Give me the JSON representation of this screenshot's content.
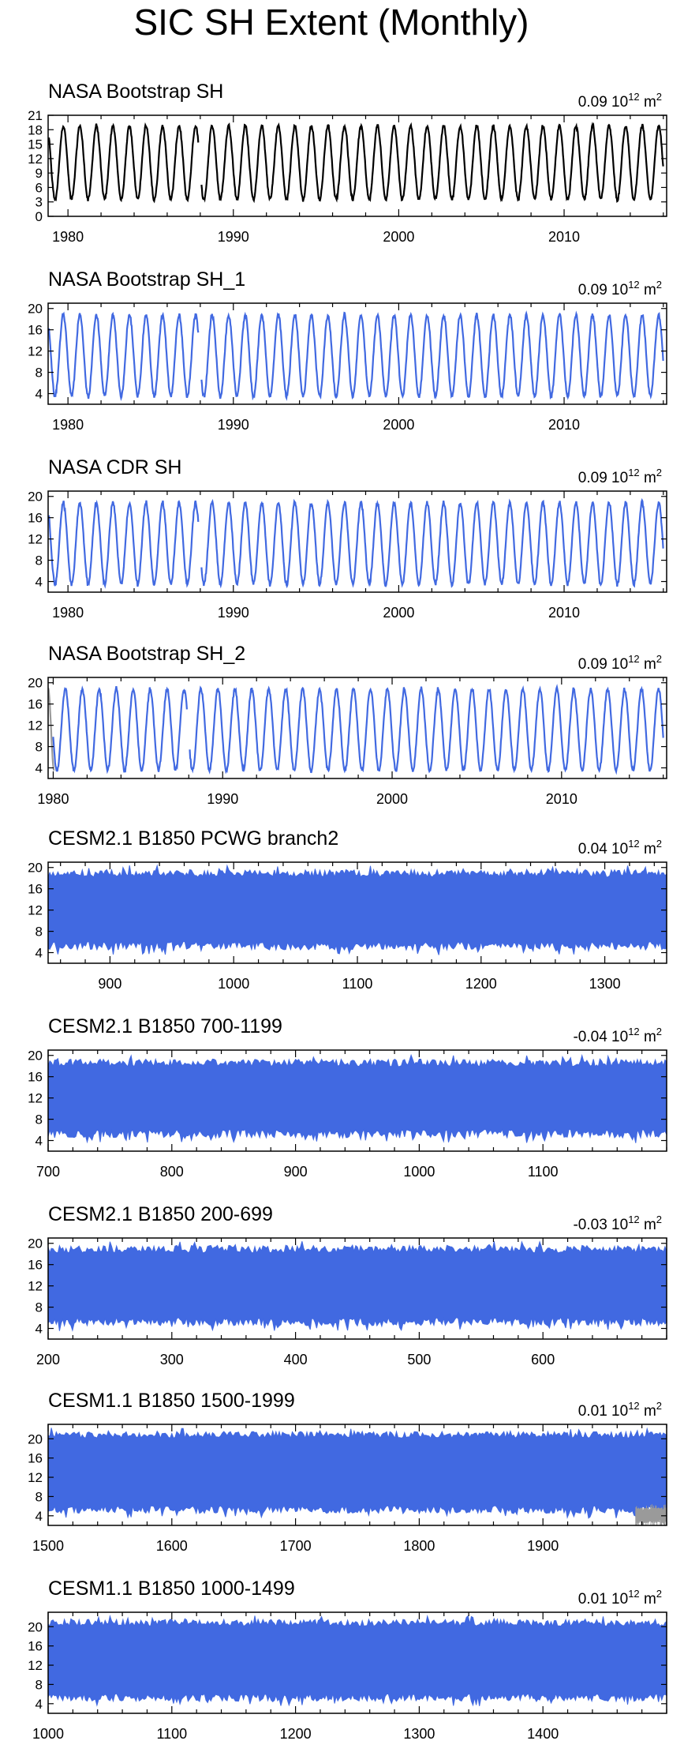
{
  "title": "SIC SH Extent (Monthly)",
  "trend_unit": "10",
  "trend_unit_exp": "12",
  "trend_unit_suffix": "m",
  "trend_unit_suffix_exp": "2",
  "colors": {
    "obs_black": "#000000",
    "blue": "#4169e1",
    "gray": "#9a9a9a",
    "frame": "#000000"
  },
  "chart_data": [
    {
      "type": "line",
      "panel_title": "NASA Bootstrap SH",
      "trend": "0.09",
      "line_color": "#000000",
      "x_range": [
        1978.8,
        2016.2
      ],
      "x_ticks": [
        1980,
        1990,
        2000,
        2010
      ],
      "y_range": [
        0,
        21
      ],
      "y_ticks": [
        0,
        3,
        6,
        9,
        12,
        15,
        18,
        21
      ],
      "series": [
        {
          "kind": "seasonal",
          "start": 1978.85,
          "end": 2016.0,
          "trough": 3.5,
          "peak": 18.8,
          "gap": [
            1987.9,
            1988.05
          ]
        }
      ]
    },
    {
      "type": "line",
      "panel_title": "NASA Bootstrap SH_1",
      "trend": "0.09",
      "line_color": "#4169e1",
      "x_range": [
        1978.8,
        2016.2
      ],
      "x_ticks": [
        1980,
        1990,
        2000,
        2010
      ],
      "y_range": [
        2,
        21
      ],
      "y_ticks": [
        4,
        8,
        12,
        16,
        20
      ],
      "series": [
        {
          "kind": "seasonal",
          "start": 1978.85,
          "end": 2016.0,
          "trough": 3.5,
          "peak": 18.8,
          "gap": [
            1987.9,
            1988.05
          ]
        }
      ]
    },
    {
      "type": "line",
      "panel_title": "NASA CDR SH",
      "trend": "0.09",
      "line_color": "#4169e1",
      "x_range": [
        1978.8,
        2016.2
      ],
      "x_ticks": [
        1980,
        1990,
        2000,
        2010
      ],
      "y_range": [
        2,
        21
      ],
      "y_ticks": [
        4,
        8,
        12,
        16,
        20
      ],
      "series": [
        {
          "kind": "seasonal",
          "start": 1978.85,
          "end": 2016.0,
          "trough": 3.5,
          "peak": 18.8,
          "gap": [
            1987.9,
            1988.05
          ]
        }
      ]
    },
    {
      "type": "line",
      "panel_title": "NASA Bootstrap SH_2",
      "trend": "0.09",
      "line_color": "#4169e1",
      "x_range": [
        1979.7,
        2016.2
      ],
      "x_ticks": [
        1980,
        1990,
        2000,
        2010
      ],
      "y_range": [
        2,
        21
      ],
      "y_ticks": [
        4,
        8,
        12,
        16,
        20
      ],
      "series": [
        {
          "kind": "seasonal",
          "start": 1980.0,
          "end": 2016.0,
          "trough": 3.5,
          "peak": 18.8,
          "gap": [
            1987.9,
            1988.05
          ]
        },
        {
          "kind": "gray_segment",
          "start": 1979.7,
          "end": 1980.05,
          "from": 19.0,
          "to": 3.5
        }
      ]
    },
    {
      "type": "area",
      "panel_title": "CESM2.1 B1850 PCWG branch2",
      "trend": "0.04",
      "line_color": "#4169e1",
      "x_range": [
        850,
        1350
      ],
      "x_ticks": [
        900,
        1000,
        1100,
        1200,
        1300
      ],
      "y_range": [
        2,
        21
      ],
      "y_ticks": [
        4,
        8,
        12,
        16,
        20
      ],
      "series": [
        {
          "kind": "band",
          "low": 5.3,
          "high": 18.9
        }
      ]
    },
    {
      "type": "area",
      "panel_title": "CESM2.1 B1850 700-1199",
      "trend": "-0.04",
      "line_color": "#4169e1",
      "x_range": [
        700,
        1200
      ],
      "x_ticks": [
        700,
        800,
        900,
        1000,
        1100
      ],
      "y_range": [
        2,
        21
      ],
      "y_ticks": [
        4,
        8,
        12,
        16,
        20
      ],
      "series": [
        {
          "kind": "band",
          "low": 5.3,
          "high": 18.6
        }
      ]
    },
    {
      "type": "area",
      "panel_title": "CESM2.1 B1850 200-699",
      "trend": "-0.03",
      "line_color": "#4169e1",
      "x_range": [
        200,
        700
      ],
      "x_ticks": [
        200,
        300,
        400,
        500,
        600
      ],
      "y_range": [
        2,
        21
      ],
      "y_ticks": [
        4,
        8,
        12,
        16,
        20
      ],
      "series": [
        {
          "kind": "band",
          "low": 5.3,
          "high": 18.9
        }
      ]
    },
    {
      "type": "area",
      "panel_title": "CESM1.1 B1850 1500-1999",
      "trend": "0.01",
      "line_color": "#4169e1",
      "x_range": [
        1500,
        2000
      ],
      "x_ticks": [
        1500,
        1600,
        1700,
        1800,
        1900
      ],
      "y_range": [
        2,
        23
      ],
      "y_ticks": [
        4,
        8,
        12,
        16,
        20
      ],
      "series": [
        {
          "kind": "band",
          "low": 5.3,
          "high": 20.8
        },
        {
          "kind": "gray_band",
          "start": 1975,
          "end": 2000,
          "low": 3.3,
          "high": 5.0
        }
      ]
    },
    {
      "type": "area",
      "panel_title": "CESM1.1 B1850 1000-1499",
      "trend": "0.01",
      "line_color": "#4169e1",
      "x_range": [
        1000,
        1500
      ],
      "x_ticks": [
        1000,
        1100,
        1200,
        1300,
        1400
      ],
      "y_range": [
        2,
        23
      ],
      "y_ticks": [
        4,
        8,
        12,
        16,
        20
      ],
      "series": [
        {
          "kind": "band",
          "low": 5.3,
          "high": 20.8
        }
      ]
    }
  ]
}
